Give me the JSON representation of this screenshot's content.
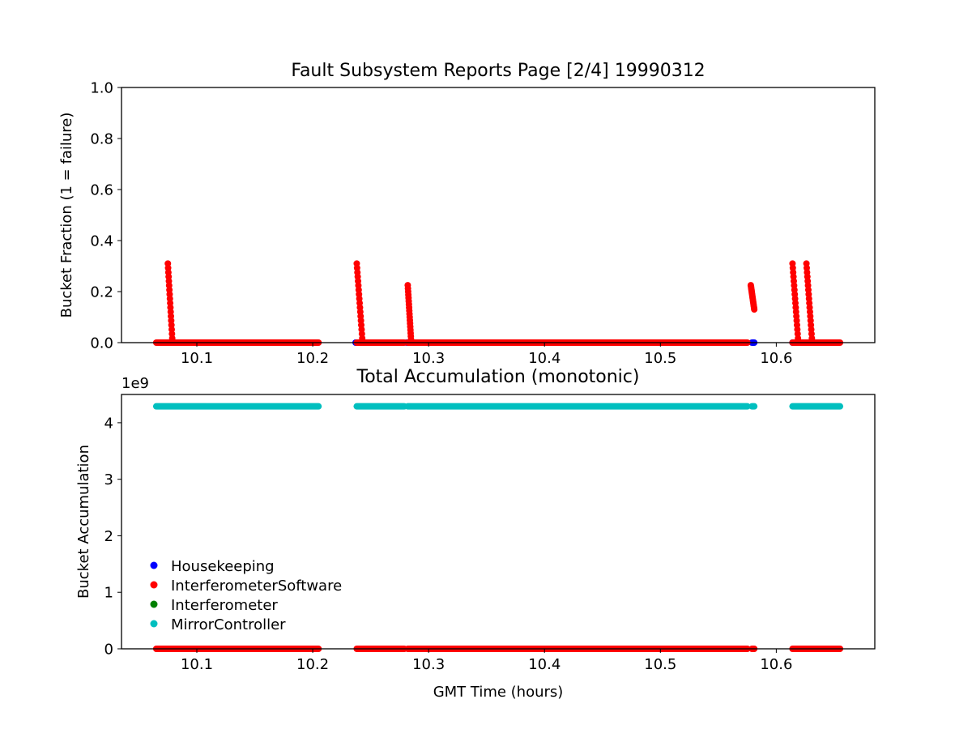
{
  "chart_data": [
    {
      "type": "scatter",
      "title": "Fault Subsystem Reports Page [2/4] 19990312",
      "xlabel": "",
      "ylabel": "Bucket Fraction (1 = failure)",
      "xlim": [
        10.035,
        10.685
      ],
      "ylim": [
        0,
        1.0
      ],
      "xticks": [
        "10.1",
        "10.2",
        "10.3",
        "10.4",
        "10.5",
        "10.6"
      ],
      "xtick_values": [
        10.1,
        10.2,
        10.3,
        10.4,
        10.5,
        10.6
      ],
      "yticks": [
        "0.0",
        "0.2",
        "0.4",
        "0.6",
        "0.8",
        "1.0"
      ],
      "ytick_values": [
        0,
        0.2,
        0.4,
        0.6,
        0.8,
        1.0
      ],
      "grid": false,
      "series": [
        {
          "name": "Housekeeping",
          "color": "#0000ff",
          "segments": [
            {
              "x_start": 10.237,
              "x_end": 10.239,
              "y": 0
            },
            {
              "x_start": 10.281,
              "x_end": 10.283,
              "y": 0
            },
            {
              "x_start": 10.579,
              "x_end": 10.581,
              "y": 0
            },
            {
              "x_start": 10.614,
              "x_end": 10.616,
              "y": 0
            }
          ],
          "ramps": []
        },
        {
          "name": "InterferometerSoftware",
          "color": "#ff0000",
          "segments": [
            {
              "x_start": 10.065,
              "x_end": 10.205,
              "y": 0
            },
            {
              "x_start": 10.238,
              "x_end": 10.279,
              "y": 0
            },
            {
              "x_start": 10.282,
              "x_end": 10.575,
              "y": 0
            },
            {
              "x_start": 10.614,
              "x_end": 10.655,
              "y": 0
            }
          ],
          "ramps": [
            {
              "x_start": 10.075,
              "x_end": 10.079,
              "y_start": 0.31,
              "y_end": 0.0
            },
            {
              "x_start": 10.238,
              "x_end": 10.243,
              "y_start": 0.31,
              "y_end": 0.0
            },
            {
              "x_start": 10.282,
              "x_end": 10.285,
              "y_start": 0.225,
              "y_end": 0.0
            },
            {
              "x_start": 10.578,
              "x_end": 10.581,
              "y_start": 0.225,
              "y_end": 0.13
            },
            {
              "x_start": 10.614,
              "x_end": 10.619,
              "y_start": 0.31,
              "y_end": 0.0
            },
            {
              "x_start": 10.626,
              "x_end": 10.631,
              "y_start": 0.31,
              "y_end": 0.0
            }
          ]
        },
        {
          "name": "Interferometer",
          "color": "#008000",
          "segments": [],
          "ramps": []
        },
        {
          "name": "MirrorController",
          "color": "#00bfbf",
          "segments": [],
          "ramps": []
        }
      ]
    },
    {
      "type": "scatter",
      "title": "Total Accumulation (monotonic)",
      "xlabel": "GMT Time (hours)",
      "ylabel": "Bucket Accumulation",
      "offset_text": "1e9",
      "xlim": [
        10.035,
        10.685
      ],
      "ylim": [
        0,
        4.5
      ],
      "xticks": [
        "10.1",
        "10.2",
        "10.3",
        "10.4",
        "10.5",
        "10.6"
      ],
      "xtick_values": [
        10.1,
        10.2,
        10.3,
        10.4,
        10.5,
        10.6
      ],
      "yticks": [
        "0",
        "1",
        "2",
        "3",
        "4"
      ],
      "ytick_values": [
        0,
        1,
        2,
        3,
        4
      ],
      "grid": false,
      "legend_position": "lower-left",
      "series": [
        {
          "name": "Housekeeping",
          "color": "#0000ff",
          "segments": []
        },
        {
          "name": "InterferometerSoftware",
          "color": "#ff0000",
          "segments": [
            {
              "x_start": 10.065,
              "x_end": 10.205,
              "y": 0
            },
            {
              "x_start": 10.238,
              "x_end": 10.279,
              "y": 0
            },
            {
              "x_start": 10.282,
              "x_end": 10.575,
              "y": 0
            },
            {
              "x_start": 10.579,
              "x_end": 10.581,
              "y": 0
            },
            {
              "x_start": 10.614,
              "x_end": 10.655,
              "y": 0
            }
          ]
        },
        {
          "name": "Interferometer",
          "color": "#008000",
          "segments": []
        },
        {
          "name": "MirrorController",
          "color": "#00bfbf",
          "segments": [
            {
              "x_start": 10.065,
              "x_end": 10.205,
              "y": 4.29
            },
            {
              "x_start": 10.238,
              "x_end": 10.279,
              "y": 4.29
            },
            {
              "x_start": 10.282,
              "x_end": 10.575,
              "y": 4.29
            },
            {
              "x_start": 10.579,
              "x_end": 10.581,
              "y": 4.29
            },
            {
              "x_start": 10.614,
              "x_end": 10.655,
              "y": 4.29
            }
          ]
        }
      ]
    }
  ],
  "legend": [
    {
      "label": "Housekeeping",
      "color": "#0000ff"
    },
    {
      "label": "InterferometerSoftware",
      "color": "#ff0000"
    },
    {
      "label": "Interferometer",
      "color": "#008000"
    },
    {
      "label": "MirrorController",
      "color": "#00bfbf"
    }
  ]
}
